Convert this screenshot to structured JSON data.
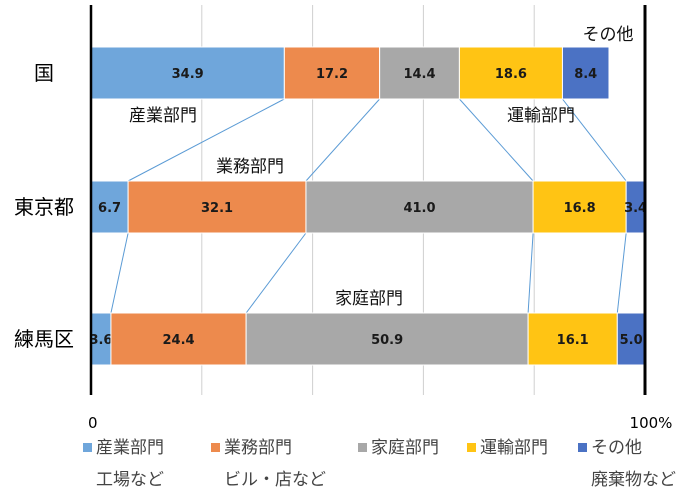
{
  "chart_data": {
    "type": "bar",
    "orientation": "horizontal",
    "stacked": "percent",
    "categories": [
      "国",
      "東京都",
      "練馬区"
    ],
    "series": [
      {
        "name": "産業部門",
        "sub": "工場など",
        "color": "#6fa6db",
        "values": [
          34.9,
          6.7,
          3.6
        ]
      },
      {
        "name": "業務部門",
        "sub": "ビル・店など",
        "color": "#ed8a4d",
        "values": [
          17.2,
          32.1,
          24.4
        ]
      },
      {
        "name": "家庭部門",
        "sub": "",
        "color": "#a8a8a8",
        "values": [
          14.4,
          41.0,
          50.9
        ]
      },
      {
        "name": "運輸部門",
        "sub": "",
        "color": "#ffc414",
        "values": [
          18.6,
          16.8,
          16.1
        ]
      },
      {
        "name": "その他",
        "sub": "廃棄物など",
        "color": "#4b72c4",
        "values": [
          8.4,
          3.4,
          5.0
        ]
      }
    ],
    "value_labels": [
      [
        "34.9",
        "17.2",
        "14.4",
        "18.6",
        "8.4"
      ],
      [
        "6.7",
        "32.1",
        "41.0",
        "16.8",
        "3.4"
      ],
      [
        "3.6",
        "24.4",
        "50.9",
        "16.1",
        "5.0"
      ]
    ],
    "xlim": [
      0,
      100
    ],
    "x_ticks": [
      "0",
      "100%"
    ],
    "grid": true,
    "legend": "bottom",
    "annotations": [
      {
        "text": "その他",
        "series": 4,
        "row": 0,
        "where": "above"
      },
      {
        "text": "産業部門",
        "series": 0,
        "row": 0,
        "where": "below"
      },
      {
        "text": "運輸部門",
        "series": 3,
        "row": 0,
        "where": "below"
      },
      {
        "text": "業務部門",
        "series": 1,
        "row": 1,
        "where": "above"
      },
      {
        "text": "家庭部門",
        "series": 2,
        "row": 2,
        "where": "above"
      }
    ]
  }
}
